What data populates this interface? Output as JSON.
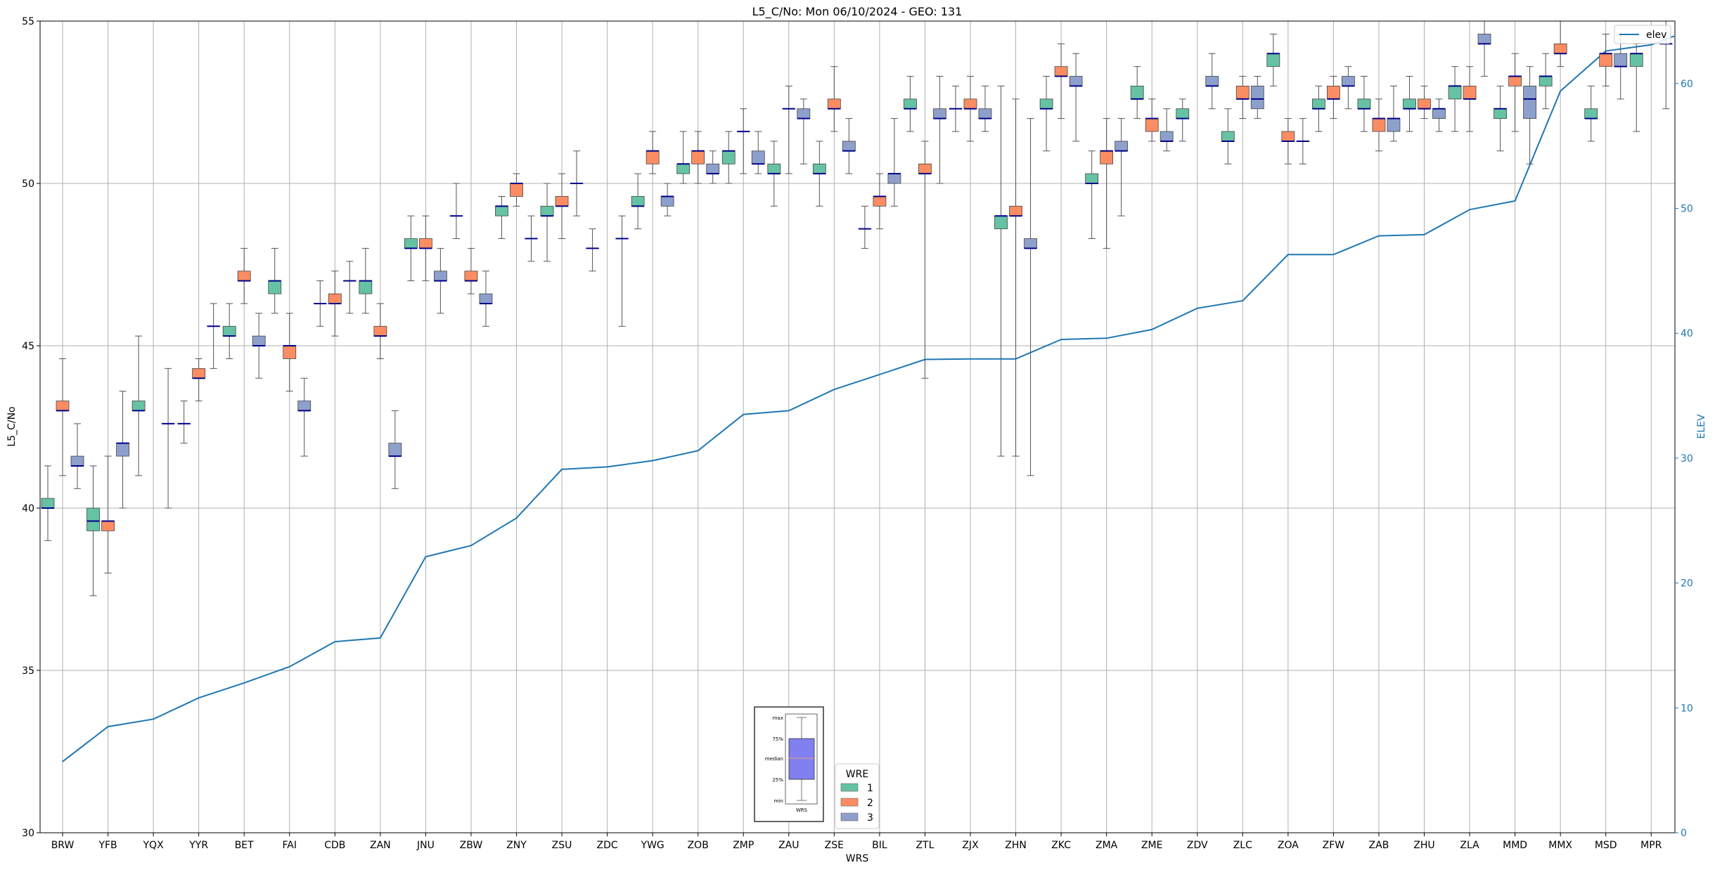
{
  "chart_data": {
    "type": "box",
    "title": "L5_C/No: Mon 06/10/2024 - GEO: 131",
    "xlabel": "WRS",
    "ylabel": "L5_C/No",
    "y2label": "ELEV",
    "ylim": [
      30,
      55
    ],
    "y2lim": [
      0,
      65
    ],
    "yticks": [
      30,
      35,
      40,
      45,
      50,
      55
    ],
    "y2ticks": [
      0,
      10,
      20,
      30,
      40,
      50,
      60
    ],
    "grid": true,
    "colors": {
      "1": "#66c2a5",
      "2": "#fc8d62",
      "3": "#8da0cb",
      "median": "#00008b",
      "elev": "#1f77b4",
      "whisker": "#555555"
    },
    "categories": [
      "BRW",
      "YFB",
      "YQX",
      "YYR",
      "BET",
      "FAI",
      "CDB",
      "ZAN",
      "JNU",
      "ZBW",
      "ZNY",
      "ZSU",
      "ZDC",
      "YWG",
      "ZOB",
      "ZMP",
      "ZAU",
      "ZSE",
      "BIL",
      "ZTL",
      "ZJX",
      "ZHN",
      "ZKC",
      "ZMA",
      "ZME",
      "ZDV",
      "ZLC",
      "ZOA",
      "ZFW",
      "ZAB",
      "ZHU",
      "ZLA",
      "MMD",
      "MMX",
      "MSD",
      "MPR"
    ],
    "hue_title": "WRE",
    "hue_levels": [
      "1",
      "2",
      "3"
    ],
    "boxes": [
      [
        [
          39,
          40,
          40,
          40.3,
          41.3
        ],
        [
          41,
          43,
          43,
          43.3,
          44.6
        ],
        [
          40.6,
          41.3,
          41.3,
          41.6,
          42.6
        ]
      ],
      [
        [
          37.3,
          39.3,
          39.6,
          40,
          41.3
        ],
        [
          38,
          39.3,
          39.6,
          39.6,
          41.6
        ],
        [
          40,
          41.6,
          42,
          42,
          43.6
        ]
      ],
      [
        [
          41,
          43,
          43,
          43.3,
          45.3
        ],
        null,
        [
          40,
          42.6,
          42.6,
          42.6,
          44.3
        ]
      ],
      [
        [
          42,
          42.6,
          42.6,
          42.6,
          43.3
        ],
        [
          43.3,
          44,
          44,
          44.3,
          44.6
        ],
        [
          44.3,
          45.6,
          45.6,
          45.6,
          46.3
        ]
      ],
      [
        [
          44.6,
          45.3,
          45.3,
          45.6,
          46.3
        ],
        [
          46.3,
          47,
          47,
          47.3,
          48
        ],
        [
          44,
          45,
          45,
          45.3,
          46
        ]
      ],
      [
        [
          46,
          46.6,
          47,
          47,
          48
        ],
        [
          43.6,
          44.6,
          45,
          45,
          46
        ],
        [
          41.6,
          43,
          43,
          43.3,
          44
        ]
      ],
      [
        [
          45.6,
          46.3,
          46.3,
          46.3,
          47
        ],
        [
          45.3,
          46.3,
          46.3,
          46.6,
          47.3
        ],
        [
          46,
          47,
          47,
          47,
          47.6
        ]
      ],
      [
        [
          46,
          46.6,
          47,
          47,
          48
        ],
        [
          44.6,
          45.3,
          45.3,
          45.6,
          46.3
        ],
        [
          40.6,
          41.6,
          41.6,
          42,
          43
        ]
      ],
      [
        [
          47,
          48,
          48,
          48.3,
          49
        ],
        [
          47,
          48,
          48,
          48.3,
          49
        ],
        [
          46,
          47,
          47,
          47.3,
          48
        ]
      ],
      [
        [
          48.3,
          49,
          49,
          49,
          50
        ],
        [
          46.6,
          47,
          47,
          47.3,
          48
        ],
        [
          45.6,
          46.3,
          46.3,
          46.6,
          47.3
        ]
      ],
      [
        [
          48.3,
          49,
          49.3,
          49.3,
          49.6
        ],
        [
          49.3,
          49.6,
          50,
          50,
          50.3
        ],
        [
          47.6,
          48.3,
          48.3,
          48.3,
          49
        ]
      ],
      [
        [
          47.6,
          49,
          49,
          49.3,
          50
        ],
        [
          48.3,
          49.3,
          49.3,
          49.6,
          50.3
        ],
        [
          49,
          50,
          50,
          50,
          51
        ]
      ],
      [
        [
          47.3,
          48,
          48,
          48,
          48.6
        ],
        null,
        [
          45.6,
          48.3,
          48.3,
          48.3,
          49
        ]
      ],
      [
        [
          48.6,
          49.3,
          49.3,
          49.6,
          50.3
        ],
        [
          50.3,
          50.6,
          51,
          51,
          51.6
        ],
        [
          49,
          49.3,
          49.6,
          49.6,
          50
        ]
      ],
      [
        [
          50,
          50.3,
          50.6,
          50.6,
          51.6
        ],
        [
          50,
          50.6,
          51,
          51,
          51.6
        ],
        [
          50,
          50.3,
          50.3,
          50.6,
          51
        ]
      ],
      [
        [
          50,
          50.6,
          51,
          51,
          51.6
        ],
        [
          50.3,
          51.6,
          51.6,
          51.6,
          52.3
        ],
        [
          50.3,
          50.6,
          50.6,
          51,
          51.6
        ]
      ],
      [
        [
          49.3,
          50.3,
          50.3,
          50.6,
          51.3
        ],
        [
          50.3,
          52.3,
          52.3,
          52.3,
          53
        ],
        [
          50.6,
          52,
          52,
          52.3,
          52.6
        ]
      ],
      [
        [
          49.3,
          50.3,
          50.3,
          50.6,
          51.3
        ],
        [
          51.6,
          52.3,
          52.3,
          52.6,
          53.6
        ],
        [
          50.3,
          51,
          51,
          51.3,
          52
        ]
      ],
      [
        [
          48,
          48.6,
          48.6,
          48.6,
          49.3
        ],
        [
          48.6,
          49.3,
          49.6,
          49.6,
          50.3
        ],
        [
          49.3,
          50,
          50.3,
          50.3,
          52
        ]
      ],
      [
        [
          51.6,
          52.3,
          52.3,
          52.6,
          53.3
        ],
        [
          44,
          50.3,
          50.3,
          50.6,
          51.3
        ],
        [
          50,
          52,
          52,
          52.3,
          53.3
        ]
      ],
      [
        [
          51.6,
          52.3,
          52.3,
          52.3,
          53
        ],
        [
          51.3,
          52.3,
          52.3,
          52.6,
          53.3
        ],
        [
          51.6,
          52,
          52,
          52.3,
          53
        ]
      ],
      [
        [
          41.6,
          48.6,
          49,
          49,
          53
        ],
        [
          41.6,
          49,
          49,
          49.3,
          52.6
        ],
        [
          41,
          48,
          48,
          48.3,
          52
        ]
      ],
      [
        [
          51,
          52.3,
          52.3,
          52.6,
          53.3
        ],
        [
          52,
          53.3,
          53.3,
          53.6,
          54.3
        ],
        [
          51.3,
          53,
          53,
          53.3,
          54
        ]
      ],
      [
        [
          48.3,
          50,
          50,
          50.3,
          51
        ],
        [
          48,
          50.6,
          51,
          51,
          52
        ],
        [
          49,
          51,
          51,
          51.3,
          52
        ]
      ],
      [
        [
          52,
          52.6,
          52.6,
          53,
          53.6
        ],
        [
          51.3,
          51.6,
          52,
          52,
          52.6
        ],
        [
          51,
          51.3,
          51.3,
          51.6,
          52.3
        ]
      ],
      [
        [
          51.3,
          52,
          52,
          52.3,
          52.6
        ],
        null,
        [
          52.3,
          53,
          53,
          53.3,
          54
        ]
      ],
      [
        [
          50.6,
          51.3,
          51.3,
          51.6,
          52.3
        ],
        [
          52,
          52.6,
          52.6,
          53,
          53.3
        ],
        [
          52,
          52.3,
          52.6,
          53,
          53.3
        ]
      ],
      [
        [
          53,
          53.6,
          54,
          54,
          54.6
        ],
        [
          50.6,
          51.3,
          51.3,
          51.6,
          52
        ],
        [
          50.6,
          51.3,
          51.3,
          51.3,
          52
        ]
      ],
      [
        [
          51.6,
          52.3,
          52.3,
          52.6,
          53
        ],
        [
          52,
          52.6,
          52.6,
          53,
          53.3
        ],
        [
          52.3,
          53,
          53,
          53.3,
          53.6
        ]
      ],
      [
        [
          51.6,
          52.3,
          52.3,
          52.6,
          53.3
        ],
        [
          51,
          51.6,
          52,
          52,
          52.6
        ],
        [
          51.3,
          51.6,
          52,
          52,
          53
        ]
      ],
      [
        [
          51.6,
          52.3,
          52.3,
          52.6,
          53.3
        ],
        [
          52,
          52.3,
          52.3,
          52.6,
          53
        ],
        [
          51.6,
          52,
          52.3,
          52.3,
          52.6
        ]
      ],
      [
        [
          51.6,
          52.6,
          53,
          53,
          53.6
        ],
        [
          51.6,
          52.6,
          52.6,
          53,
          53.6
        ],
        [
          53.3,
          54.3,
          54.3,
          54.6,
          55
        ]
      ],
      [
        [
          51,
          52,
          52.3,
          52.3,
          53
        ],
        [
          51.6,
          53,
          53.3,
          53.3,
          54
        ],
        [
          50.6,
          52,
          52.6,
          53,
          53.6
        ]
      ],
      [
        [
          52.3,
          53,
          53.3,
          53.3,
          54
        ],
        [
          53.6,
          54,
          54,
          54.3,
          55
        ],
        null
      ],
      [
        [
          51.3,
          52,
          52,
          52.3,
          53
        ],
        [
          53,
          53.6,
          54,
          54,
          54.6
        ],
        [
          52.6,
          53.6,
          53.6,
          54,
          54.6
        ]
      ],
      [
        [
          51.6,
          53.6,
          54,
          54,
          54.3
        ],
        null,
        [
          52.3,
          54.3,
          54.3,
          54.3,
          55
        ]
      ]
    ],
    "elev": [
      5.7,
      8.5,
      9.1,
      10.8,
      12.0,
      13.3,
      15.3,
      15.6,
      22.1,
      23.0,
      25.2,
      29.1,
      29.3,
      29.8,
      30.6,
      33.5,
      33.8,
      35.5,
      36.7,
      37.9,
      37.95,
      37.95,
      39.5,
      39.6,
      40.3,
      42.0,
      42.6,
      46.3,
      46.3,
      47.8,
      47.9,
      49.9,
      50.6,
      59.4,
      62.6,
      63.1
    ],
    "elev_tail": 63.8,
    "legend_elev": "elev",
    "inset": {
      "labels": [
        "max",
        "75%",
        "median",
        "25%",
        "min"
      ],
      "xlabel": "WRS"
    }
  }
}
